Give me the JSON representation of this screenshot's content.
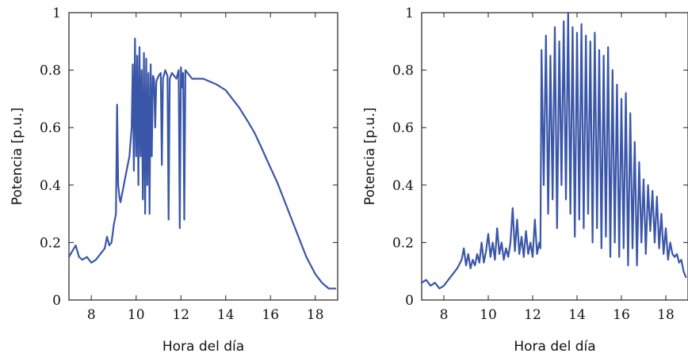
{
  "figure": {
    "line_color": "#3a56a8"
  },
  "chart_data": [
    {
      "type": "line",
      "xlabel": "Hora del día",
      "ylabel": "Potencia [p.u.]",
      "xlim": [
        7,
        19
      ],
      "ylim": [
        0,
        1
      ],
      "xticks": [
        8,
        10,
        12,
        14,
        16,
        18
      ],
      "yticks": [
        0,
        0.2,
        0.4,
        0.6,
        0.8,
        1
      ],
      "yticklabels": [
        "0",
        "0.2",
        "0.4",
        "0.6",
        "0.8",
        "1"
      ],
      "grid": false,
      "series": [
        {
          "color": "#3a56a8",
          "x": [
            7.0,
            7.15,
            7.3,
            7.45,
            7.6,
            7.8,
            8.0,
            8.2,
            8.4,
            8.6,
            8.7,
            8.8,
            8.9,
            9.0,
            9.1,
            9.15,
            9.2,
            9.25,
            9.3,
            9.35,
            9.4,
            9.5,
            9.6,
            9.7,
            9.8,
            9.85,
            9.9,
            9.95,
            10.0,
            10.05,
            10.1,
            10.15,
            10.2,
            10.25,
            10.3,
            10.35,
            10.4,
            10.45,
            10.5,
            10.55,
            10.6,
            10.65,
            10.7,
            10.75,
            10.8,
            10.85,
            10.9,
            11.0,
            11.1,
            11.15,
            11.2,
            11.3,
            11.4,
            11.45,
            11.5,
            11.55,
            11.6,
            11.7,
            11.8,
            11.9,
            11.95,
            12.0,
            12.05,
            12.1,
            12.15,
            12.2,
            12.3,
            12.5,
            12.8,
            13.0,
            13.3,
            13.6,
            14.0,
            14.3,
            14.6,
            15.0,
            15.3,
            15.6,
            16.0,
            16.3,
            16.6,
            17.0,
            17.3,
            17.6,
            18.0,
            18.3,
            18.6,
            18.9
          ],
          "y": [
            0.15,
            0.17,
            0.19,
            0.15,
            0.14,
            0.15,
            0.13,
            0.14,
            0.16,
            0.18,
            0.22,
            0.19,
            0.2,
            0.26,
            0.3,
            0.68,
            0.4,
            0.36,
            0.34,
            0.36,
            0.38,
            0.42,
            0.46,
            0.5,
            0.6,
            0.82,
            0.45,
            0.91,
            0.5,
            0.85,
            0.4,
            0.88,
            0.5,
            0.8,
            0.35,
            0.86,
            0.3,
            0.84,
            0.4,
            0.79,
            0.3,
            0.82,
            0.5,
            0.78,
            0.77,
            0.6,
            0.76,
            0.78,
            0.79,
            0.47,
            0.77,
            0.8,
            0.78,
            0.28,
            0.77,
            0.78,
            0.79,
            0.78,
            0.77,
            0.8,
            0.25,
            0.81,
            0.74,
            0.79,
            0.28,
            0.8,
            0.79,
            0.77,
            0.77,
            0.77,
            0.76,
            0.75,
            0.73,
            0.7,
            0.67,
            0.62,
            0.58,
            0.53,
            0.46,
            0.41,
            0.35,
            0.27,
            0.21,
            0.15,
            0.09,
            0.06,
            0.04,
            0.04
          ]
        }
      ]
    },
    {
      "type": "line",
      "xlabel": "Hora del día",
      "ylabel": "Potencia [p.u.]",
      "xlim": [
        7,
        19
      ],
      "ylim": [
        0,
        1
      ],
      "xticks": [
        8,
        10,
        12,
        14,
        16,
        18
      ],
      "yticks": [
        0,
        0.2,
        0.4,
        0.6,
        0.8,
        1
      ],
      "yticklabels": [
        "0",
        "0.2",
        "0.4",
        "0.6",
        "0.8",
        "1"
      ],
      "grid": false,
      "series": [
        {
          "color": "#3a56a8",
          "x": [
            7.0,
            7.2,
            7.4,
            7.6,
            7.8,
            8.0,
            8.2,
            8.4,
            8.6,
            8.8,
            8.9,
            9.0,
            9.1,
            9.2,
            9.3,
            9.4,
            9.5,
            9.6,
            9.7,
            9.8,
            9.9,
            10.0,
            10.1,
            10.2,
            10.3,
            10.4,
            10.5,
            10.6,
            10.7,
            10.8,
            10.9,
            11.0,
            11.1,
            11.2,
            11.3,
            11.4,
            11.5,
            11.6,
            11.7,
            11.8,
            11.9,
            12.0,
            12.1,
            12.2,
            12.3,
            12.35,
            12.4,
            12.5,
            12.6,
            12.7,
            12.8,
            12.9,
            13.0,
            13.1,
            13.2,
            13.3,
            13.4,
            13.5,
            13.6,
            13.7,
            13.8,
            13.9,
            14.0,
            14.1,
            14.2,
            14.3,
            14.4,
            14.5,
            14.6,
            14.7,
            14.8,
            14.9,
            15.0,
            15.1,
            15.2,
            15.3,
            15.4,
            15.5,
            15.6,
            15.7,
            15.8,
            15.9,
            16.0,
            16.1,
            16.2,
            16.3,
            16.4,
            16.5,
            16.6,
            16.7,
            16.8,
            16.9,
            17.0,
            17.1,
            17.2,
            17.3,
            17.4,
            17.5,
            17.6,
            17.7,
            17.8,
            17.9,
            18.0,
            18.1,
            18.2,
            18.3,
            18.4,
            18.5,
            18.6,
            18.7,
            18.8,
            18.9
          ],
          "y": [
            0.06,
            0.07,
            0.05,
            0.06,
            0.04,
            0.05,
            0.07,
            0.09,
            0.11,
            0.14,
            0.18,
            0.12,
            0.16,
            0.11,
            0.14,
            0.12,
            0.16,
            0.13,
            0.2,
            0.13,
            0.17,
            0.23,
            0.15,
            0.2,
            0.14,
            0.25,
            0.16,
            0.2,
            0.14,
            0.18,
            0.15,
            0.2,
            0.32,
            0.17,
            0.28,
            0.16,
            0.22,
            0.15,
            0.24,
            0.16,
            0.2,
            0.15,
            0.28,
            0.16,
            0.2,
            0.18,
            0.87,
            0.4,
            0.92,
            0.3,
            0.85,
            0.35,
            0.95,
            0.25,
            0.9,
            0.4,
            0.97,
            0.35,
            1.0,
            0.3,
            0.95,
            0.22,
            0.93,
            0.28,
            0.96,
            0.25,
            0.92,
            0.3,
            0.9,
            0.2,
            0.93,
            0.25,
            0.87,
            0.18,
            0.85,
            0.22,
            0.88,
            0.15,
            0.8,
            0.2,
            0.75,
            0.15,
            0.7,
            0.18,
            0.72,
            0.12,
            0.65,
            0.18,
            0.55,
            0.12,
            0.48,
            0.2,
            0.42,
            0.16,
            0.4,
            0.24,
            0.38,
            0.2,
            0.36,
            0.18,
            0.3,
            0.16,
            0.25,
            0.14,
            0.2,
            0.16,
            0.15,
            0.16,
            0.13,
            0.14,
            0.1,
            0.08
          ]
        }
      ]
    }
  ]
}
